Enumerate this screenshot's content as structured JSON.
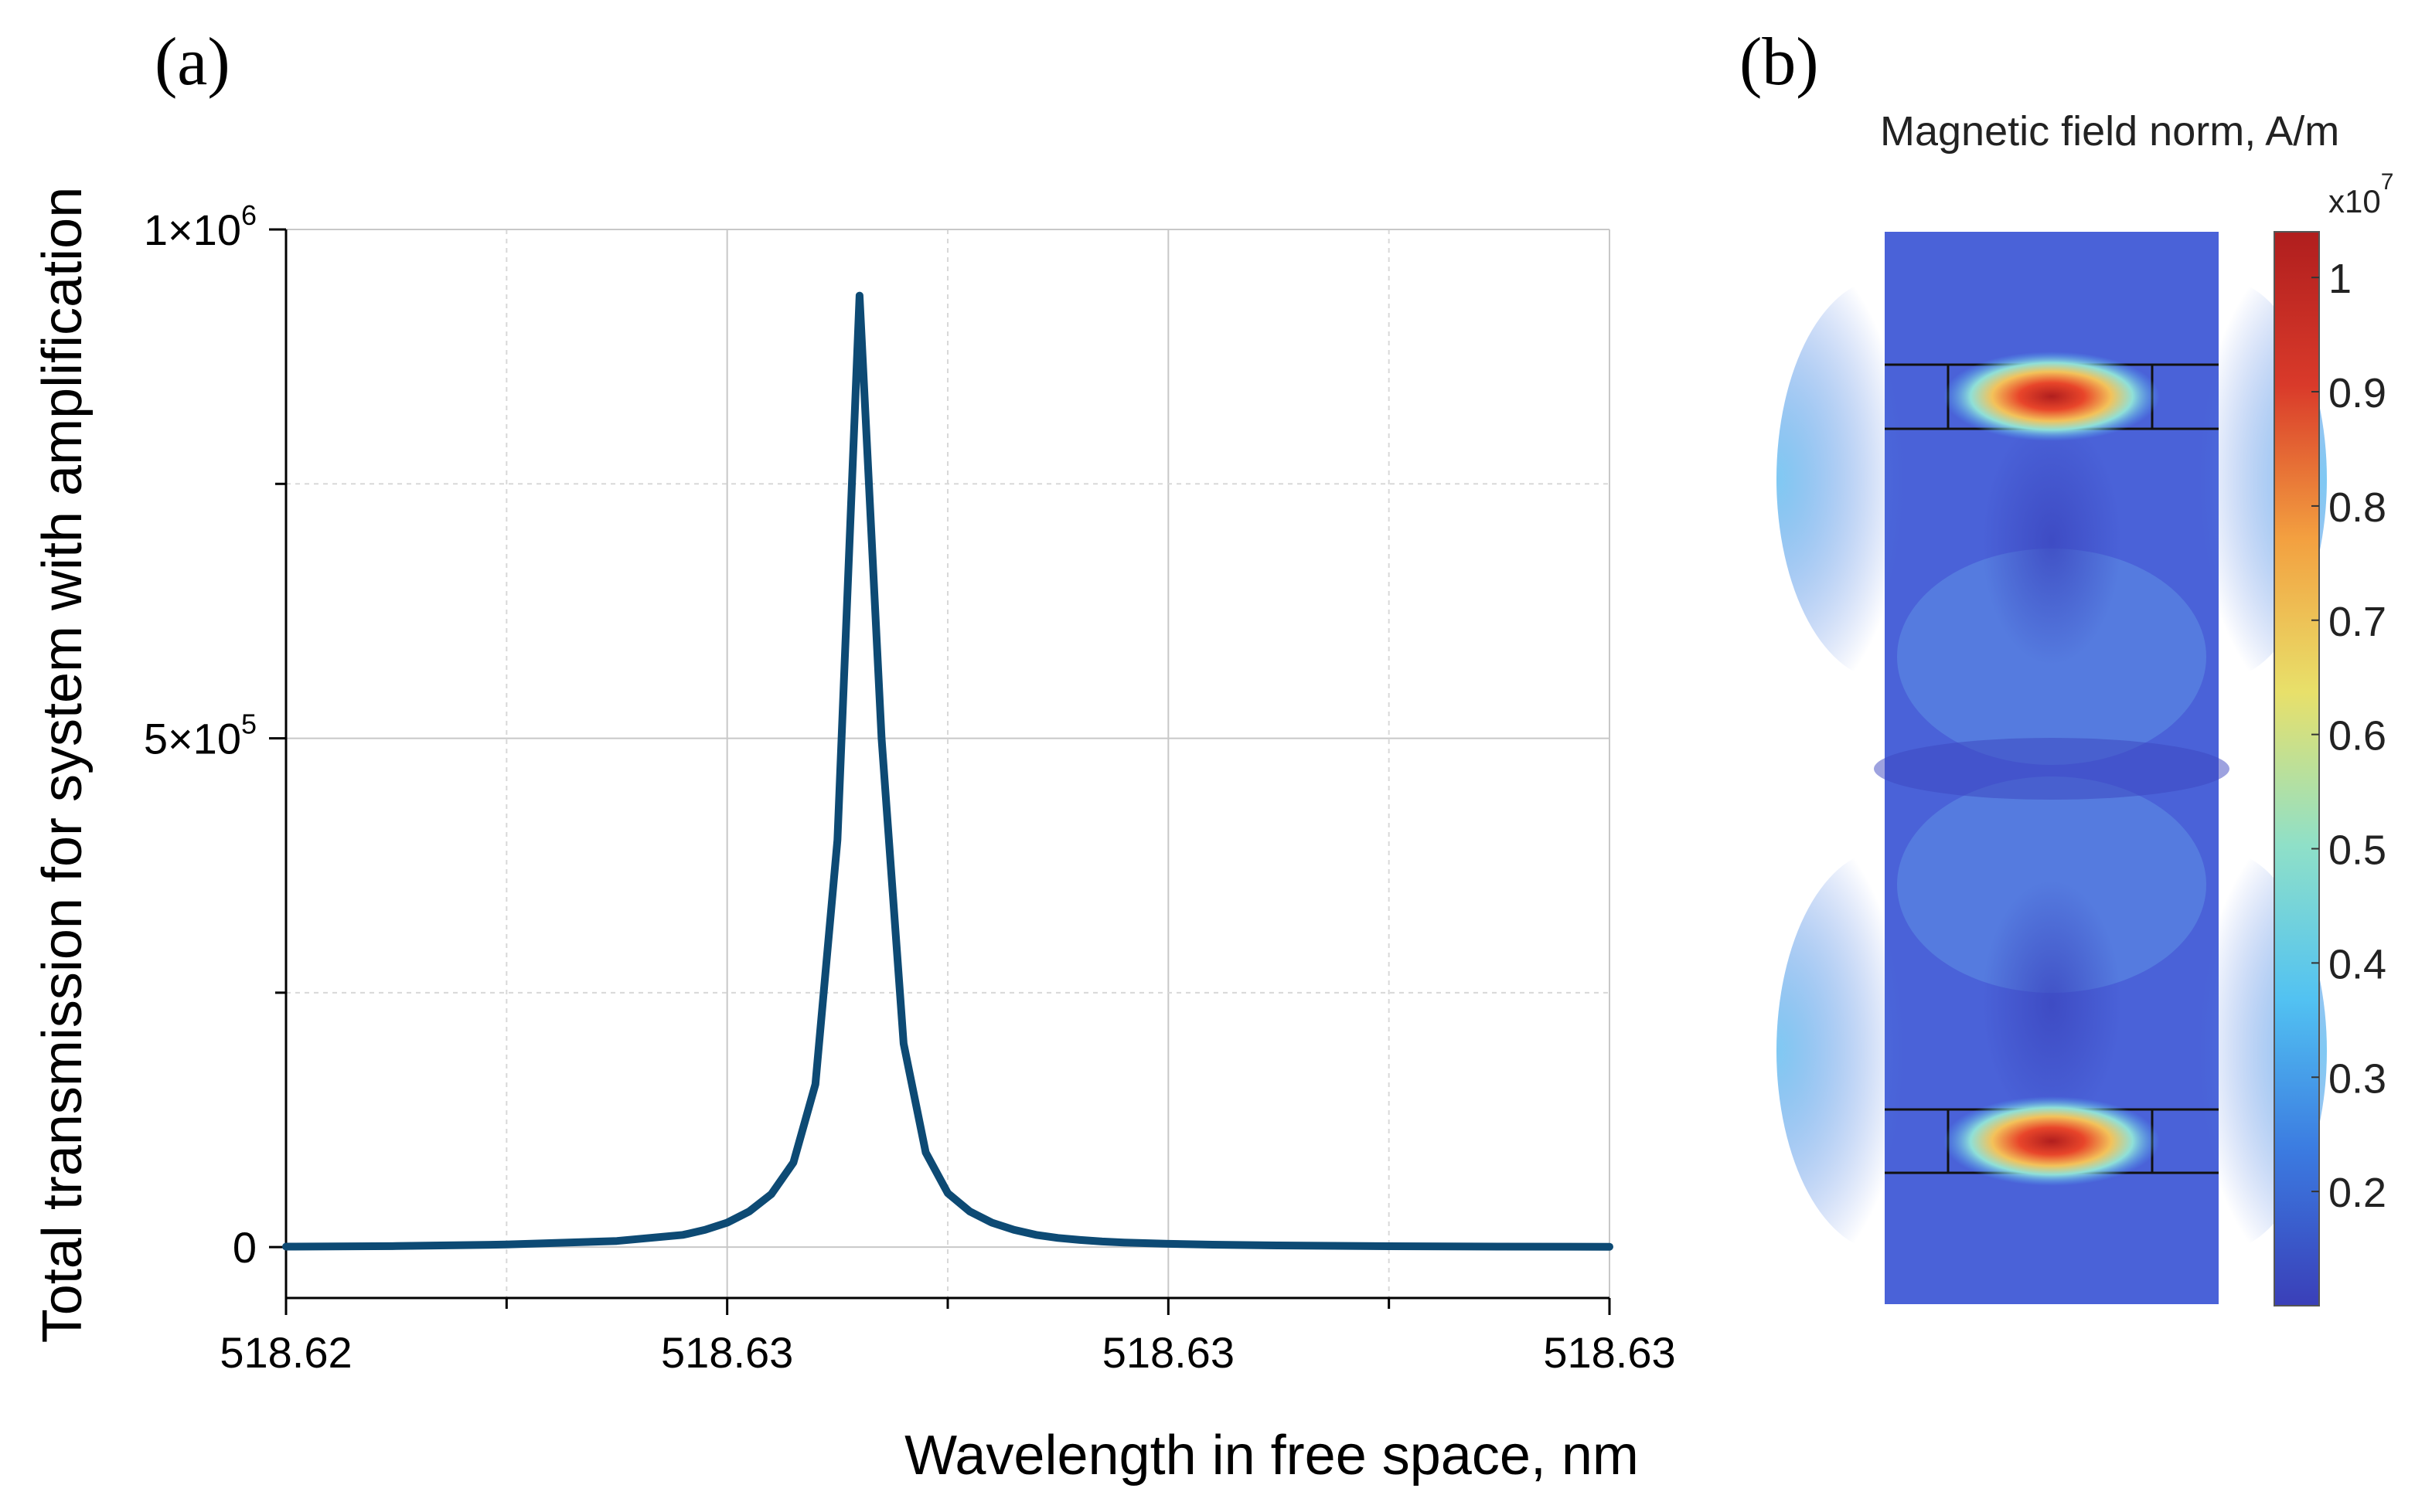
{
  "panel_a": {
    "label": "(a)"
  },
  "panel_b": {
    "label": "(b)",
    "colorbar_title": "Magnetic field norm, A/m",
    "colorbar_multiplier": "x10",
    "colorbar_exponent": "7",
    "colorbar_ticks": [
      "1",
      "0.9",
      "0.8",
      "0.7",
      "0.6",
      "0.5",
      "0.4",
      "0.3",
      "0.2"
    ],
    "colorbar_tick_values": [
      1,
      0.9,
      0.8,
      0.7,
      0.6,
      0.5,
      0.4,
      0.3,
      0.2
    ],
    "colorbar_range": [
      0.1,
      1.04
    ],
    "colorbar_colors": [
      "#3a3fb8",
      "#3b7ae0",
      "#52c2f2",
      "#8fe0c8",
      "#e8e06a",
      "#f3a040",
      "#d93a2a",
      "#b01e1e"
    ]
  },
  "chart_data": {
    "type": "line",
    "title": "",
    "xlabel": "Wavelength in free space, nm",
    "ylabel": "Total transmission for system with amplification",
    "x_tick_labels": [
      "518.62",
      "518.63",
      "518.63",
      "518.63"
    ],
    "y_tick_labels": [
      {
        "base": "0",
        "exp": ""
      },
      {
        "base": "5×10",
        "exp": "5"
      },
      {
        "base": "1×10",
        "exp": "6"
      }
    ],
    "y_tick_values": [
      0,
      500000,
      1000000
    ],
    "xlim": [
      0,
      60
    ],
    "ylim": [
      -50000,
      1000000
    ],
    "x_ticks_at": [
      0,
      20,
      40,
      60
    ],
    "x_minor_at": [
      10,
      30,
      50
    ],
    "y_minor_at": [
      250000,
      750000
    ],
    "x_unit_note": "x values are sample index across the plotted wavelength span 518.62–518.63 nm",
    "series": [
      {
        "name": "transmission",
        "color": "#0d4a74",
        "x": [
          0,
          5,
          10,
          15,
          18,
          19,
          20,
          21,
          22,
          23,
          24,
          25,
          26,
          27,
          28,
          29,
          30,
          31,
          32,
          33,
          34,
          35,
          36,
          37,
          38,
          40,
          42,
          45,
          50,
          55,
          60
        ],
        "y": [
          500,
          1000,
          2500,
          6000,
          12000,
          17000,
          24000,
          35000,
          52000,
          83000,
          160000,
          400000,
          935000,
          500000,
          200000,
          93000,
          53000,
          35000,
          24000,
          17000,
          12000,
          9000,
          7000,
          5500,
          4500,
          3200,
          2400,
          1600,
          900,
          500,
          300
        ]
      }
    ]
  }
}
